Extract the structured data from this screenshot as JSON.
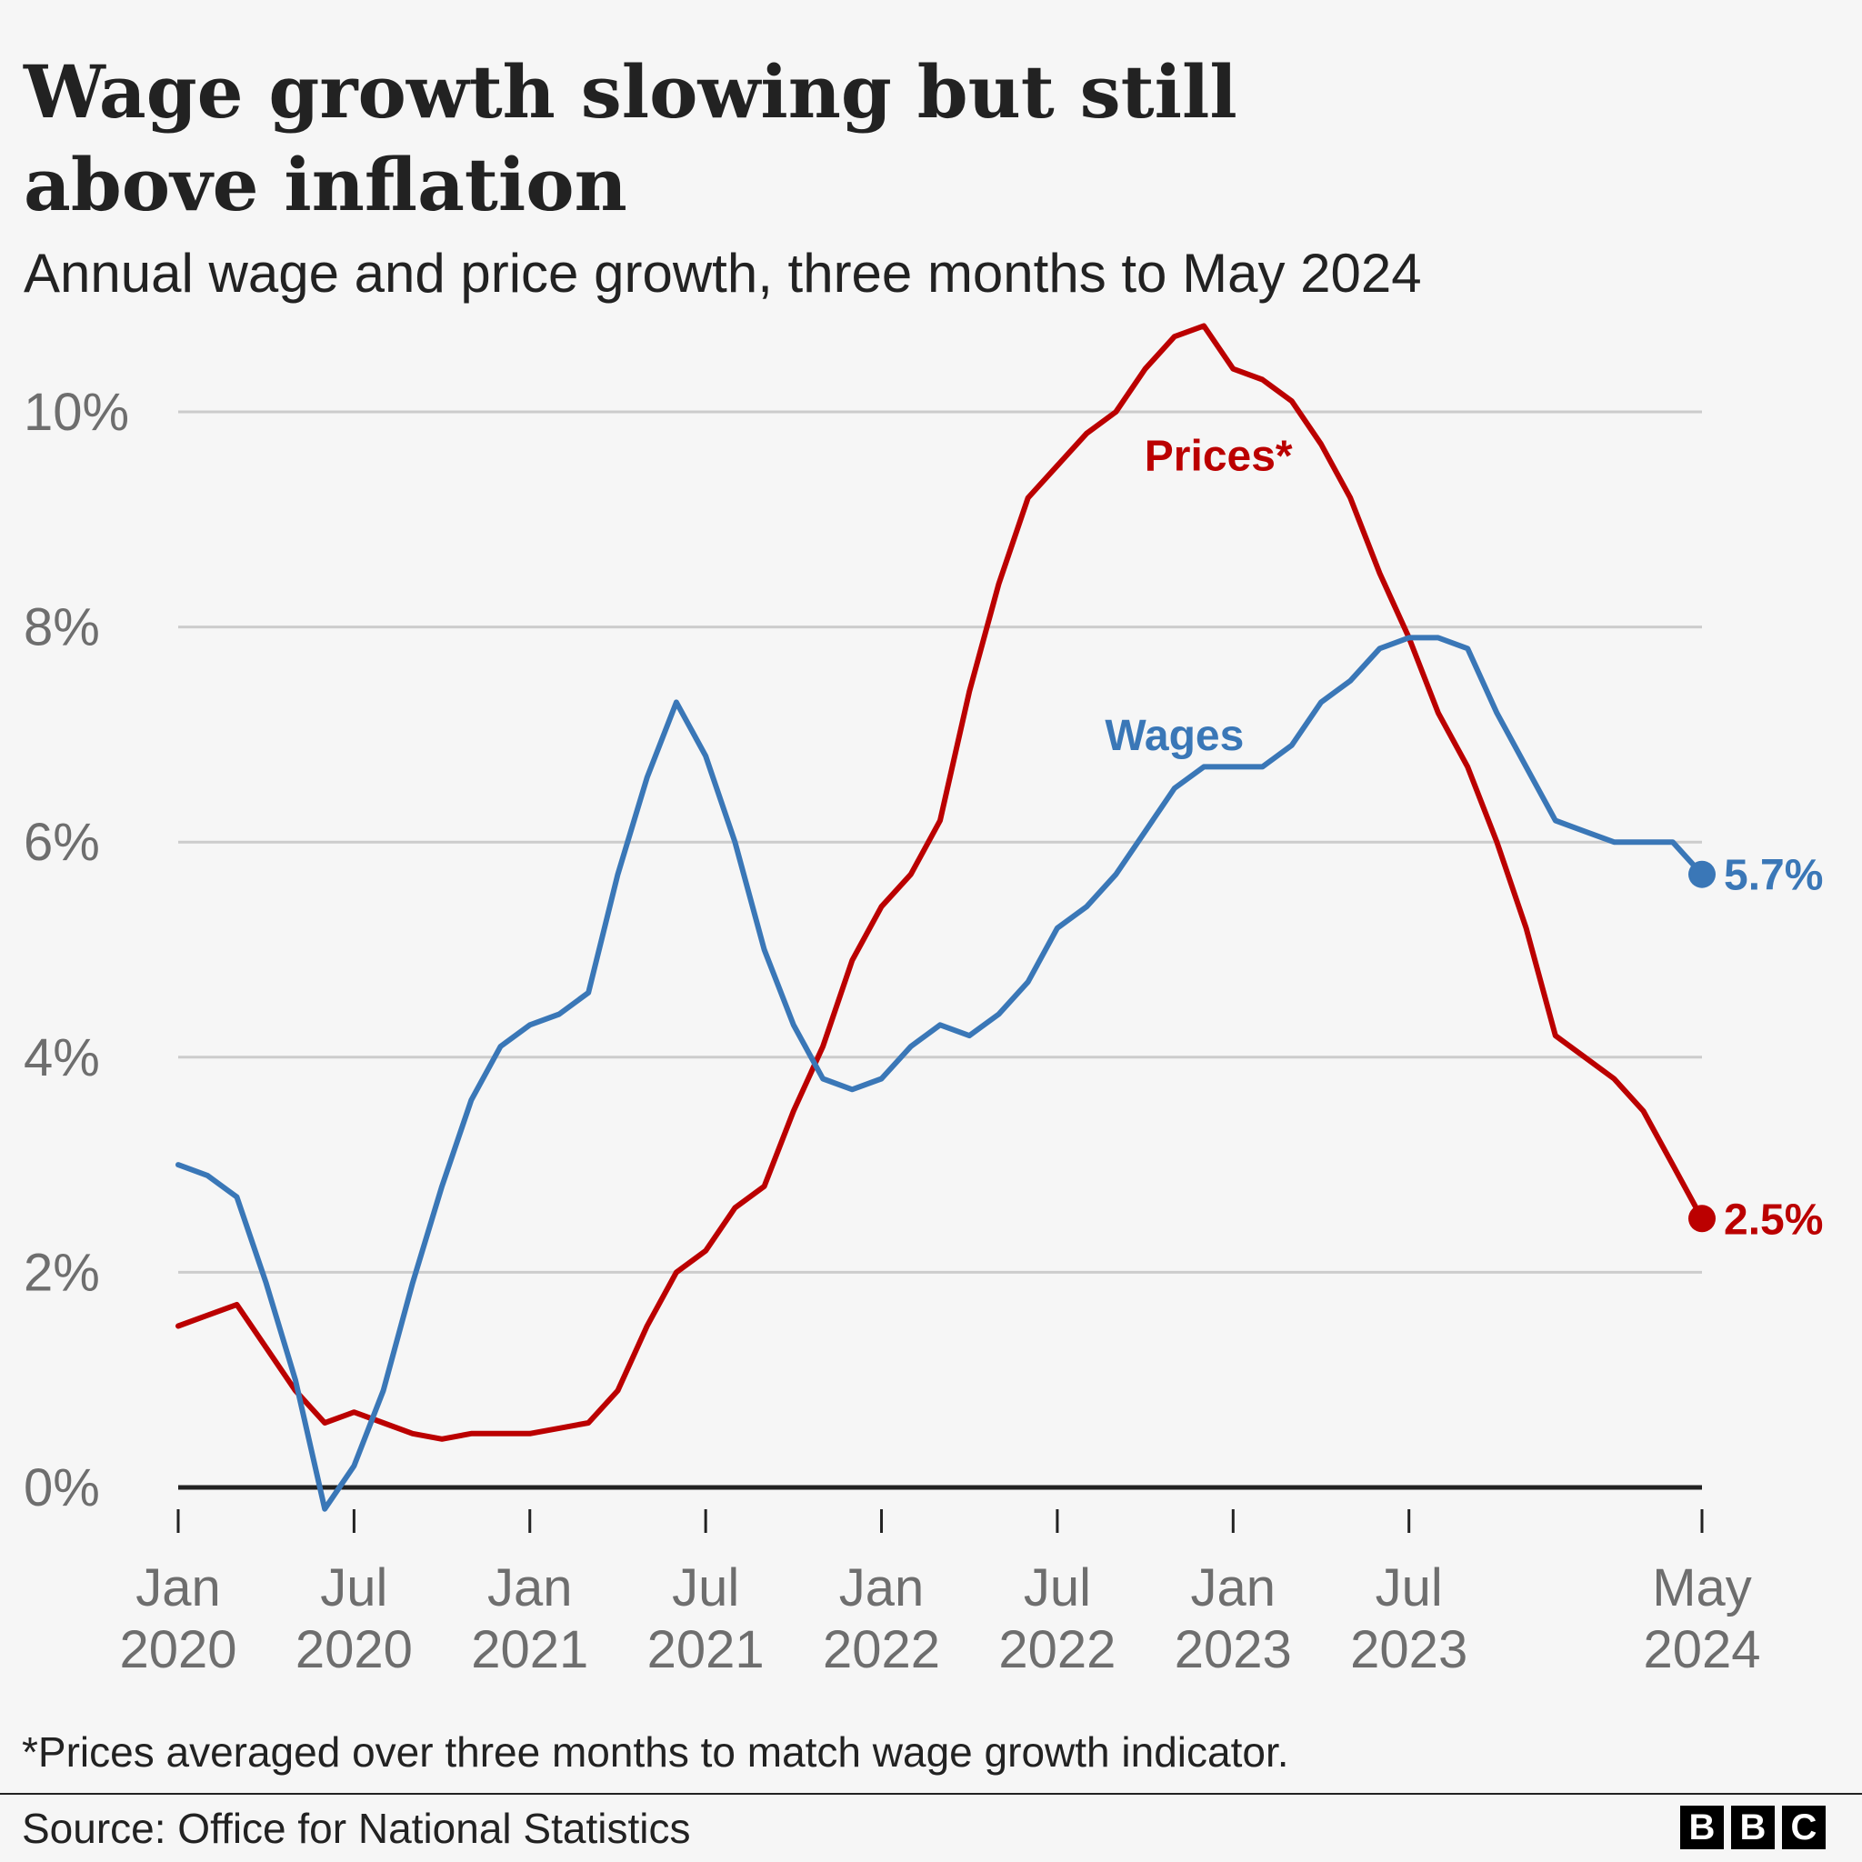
{
  "title": "Wage growth slowing but still above inflation",
  "subtitle": "Annual wage and price growth, three months to May 2024",
  "footnote": "*Prices averaged over three months to match wage growth indicator.",
  "source": "Source: Office for National Statistics",
  "logo": [
    "B",
    "B",
    "C"
  ],
  "colors": {
    "wages": "#3a77b7",
    "prices": "#bb0000",
    "grid": "#cccccc",
    "axis": "#222222",
    "tick_text": "#6e6e6e"
  },
  "chart_data": {
    "type": "line",
    "title": "Wage growth slowing but still above inflation",
    "subtitle": "Annual wage and price growth, three months to May 2024",
    "ylabel": "",
    "xlabel": "",
    "ylim": [
      0,
      10
    ],
    "yticks": [
      0,
      2,
      4,
      6,
      8,
      10
    ],
    "ytick_labels": [
      "0%",
      "2%",
      "4%",
      "6%",
      "8%",
      "10%"
    ],
    "x_range": [
      0,
      52
    ],
    "x_ticks": [
      {
        "month_index": 0,
        "line1": "Jan",
        "line2": "2020"
      },
      {
        "month_index": 6,
        "line1": "Jul",
        "line2": "2020"
      },
      {
        "month_index": 12,
        "line1": "Jan",
        "line2": "2021"
      },
      {
        "month_index": 18,
        "line1": "Jul",
        "line2": "2021"
      },
      {
        "month_index": 24,
        "line1": "Jan",
        "line2": "2022"
      },
      {
        "month_index": 30,
        "line1": "Jul",
        "line2": "2022"
      },
      {
        "month_index": 36,
        "line1": "Jan",
        "line2": "2023"
      },
      {
        "month_index": 42,
        "line1": "Jul",
        "line2": "2023"
      },
      {
        "month_index": 52,
        "line1": "May",
        "line2": "2024"
      }
    ],
    "series": [
      {
        "name": "Wages",
        "label": "Wages",
        "color": "#3a77b7",
        "end_label": "5.7%",
        "values": [
          3.0,
          2.9,
          2.7,
          1.9,
          1.0,
          -0.2,
          0.2,
          0.9,
          1.9,
          2.8,
          3.6,
          4.1,
          4.3,
          4.4,
          4.6,
          5.7,
          6.6,
          7.3,
          6.8,
          6.0,
          5.0,
          4.3,
          3.8,
          3.7,
          3.8,
          4.1,
          4.3,
          4.2,
          4.4,
          4.7,
          5.2,
          5.4,
          5.7,
          6.1,
          6.5,
          6.7,
          6.7,
          6.7,
          6.9,
          7.3,
          7.5,
          7.8,
          7.9,
          7.9,
          7.8,
          7.2,
          6.7,
          6.2,
          6.1,
          6.0,
          6.0,
          6.0,
          5.7
        ]
      },
      {
        "name": "Prices*",
        "label": "Prices*",
        "color": "#bb0000",
        "end_label": "2.5%",
        "values": [
          1.5,
          1.6,
          1.7,
          1.3,
          0.9,
          0.6,
          0.7,
          0.6,
          0.5,
          0.45,
          0.5,
          0.5,
          0.5,
          0.55,
          0.6,
          0.9,
          1.5,
          2.0,
          2.2,
          2.6,
          2.8,
          3.5,
          4.1,
          4.9,
          5.4,
          5.7,
          6.2,
          7.4,
          8.4,
          9.2,
          9.5,
          9.8,
          10.0,
          10.4,
          10.7,
          10.8,
          10.4,
          10.3,
          10.1,
          9.7,
          9.2,
          8.5,
          7.9,
          7.2,
          6.7,
          6.0,
          5.2,
          4.2,
          4.0,
          3.8,
          3.5,
          3.0,
          2.5
        ]
      }
    ],
    "annotations": [
      {
        "text": "Wages",
        "series": "Wages",
        "month_index": 34,
        "value": 7.0
      },
      {
        "text": "Prices*",
        "series": "Prices*",
        "month_index": 35.5,
        "value": 9.6
      }
    ]
  }
}
